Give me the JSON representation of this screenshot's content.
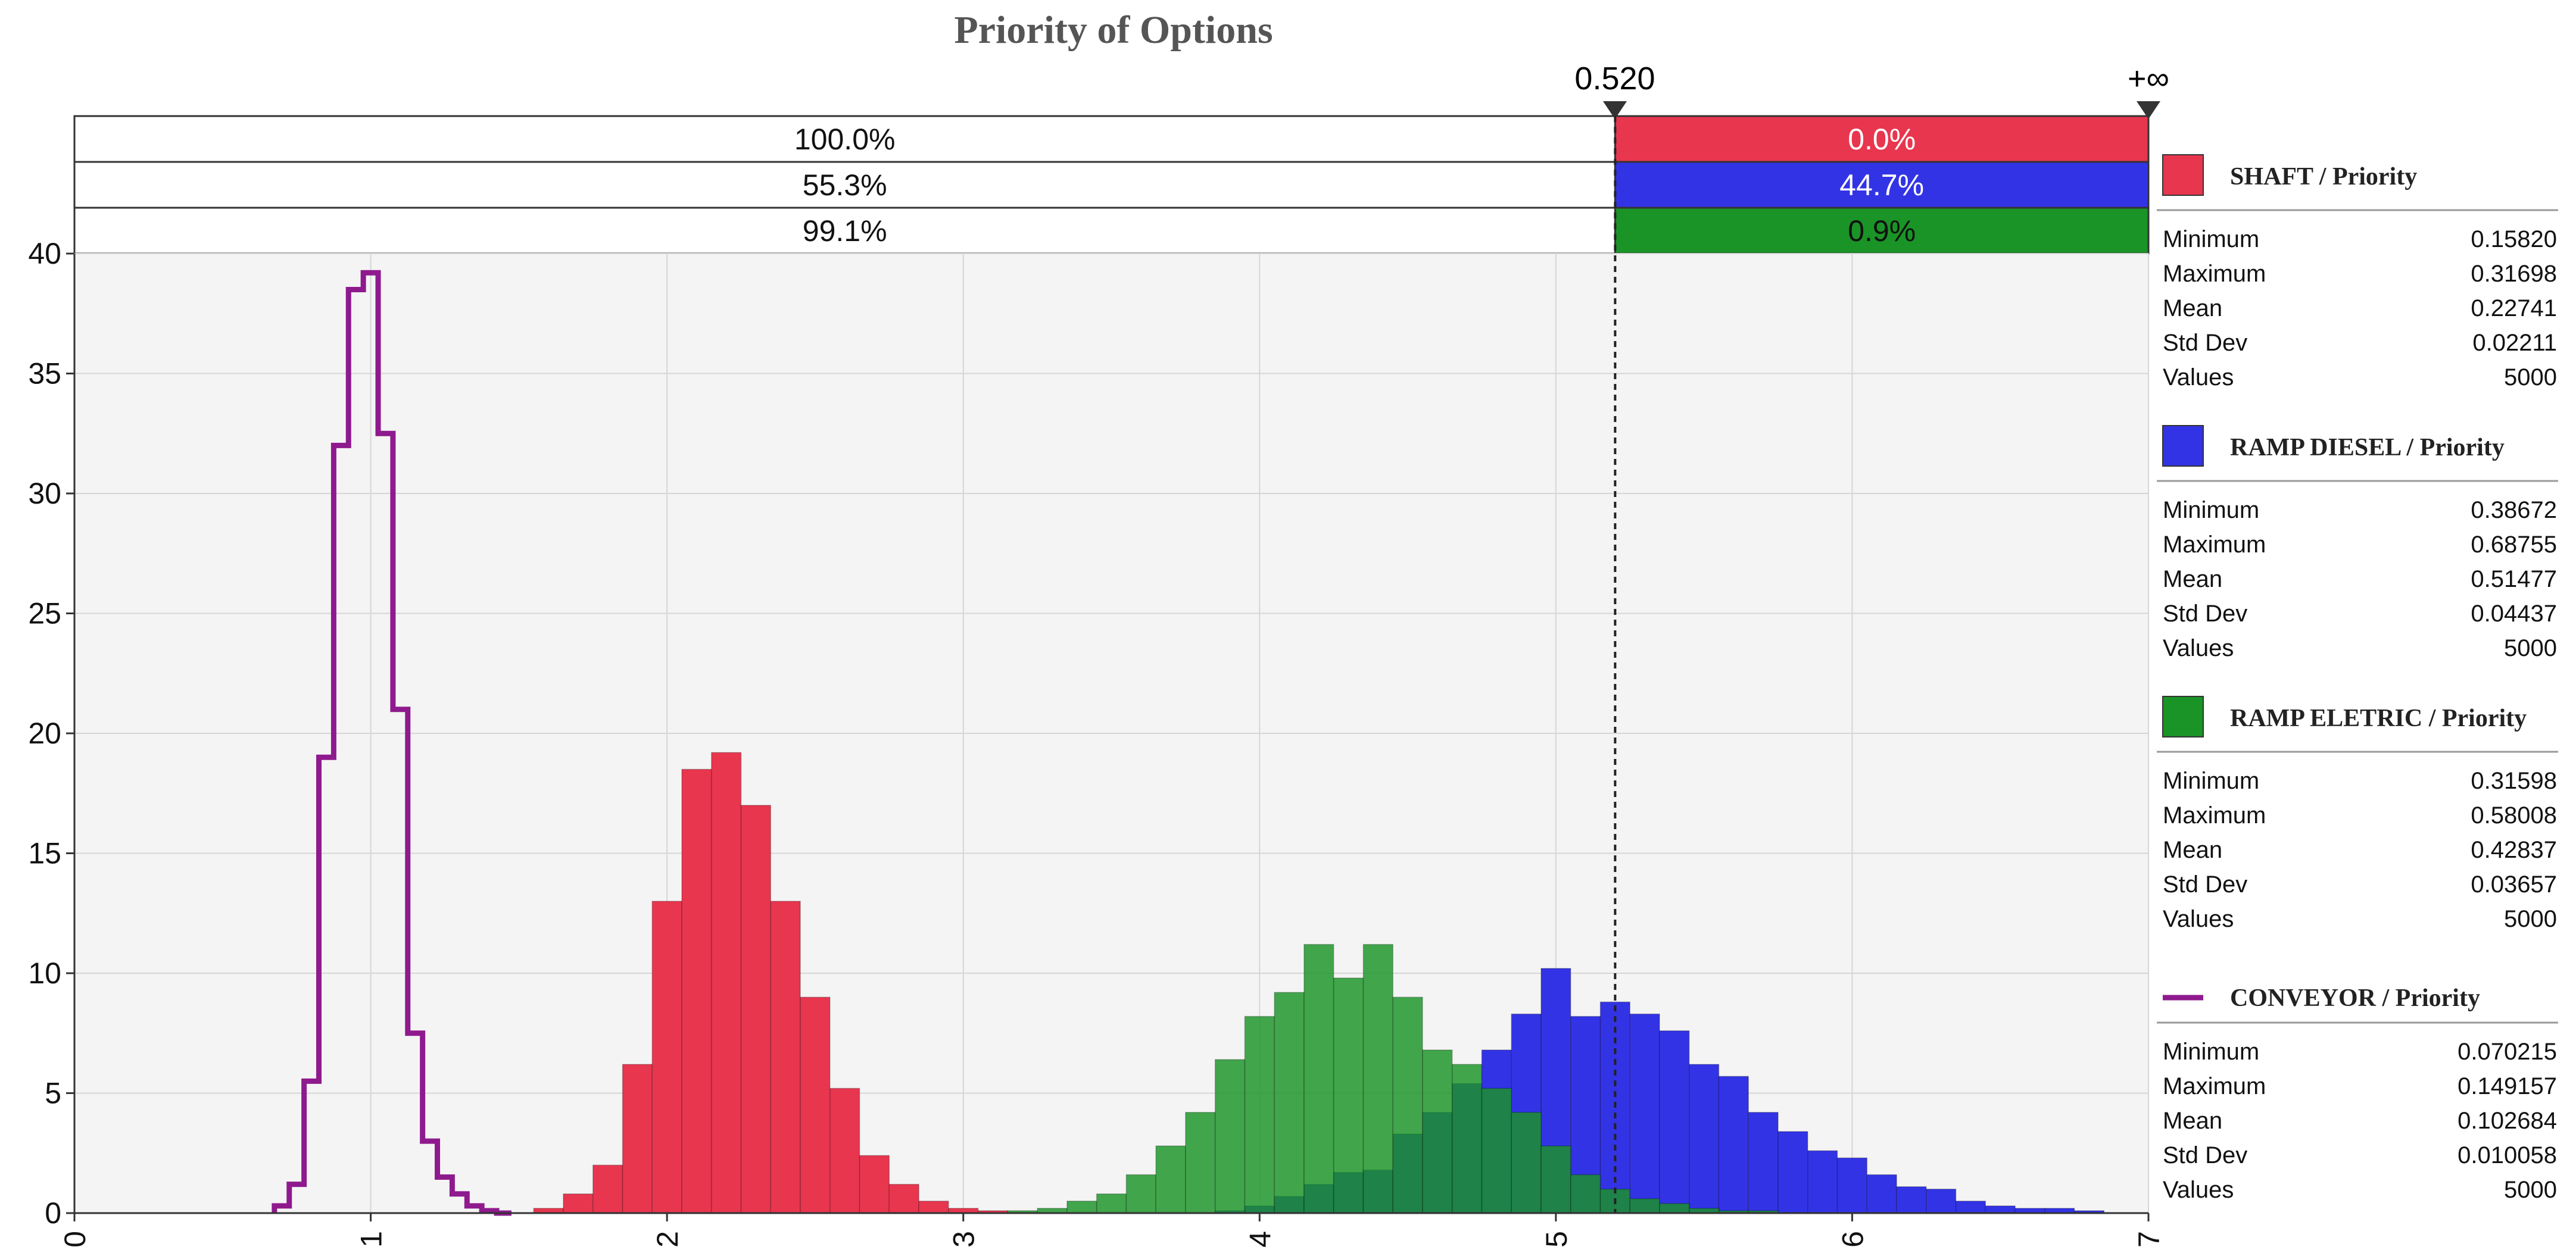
{
  "chart_data": {
    "type": "bar",
    "title": "Priority of Options",
    "xlabel": "",
    "ylabel": "",
    "xlim": [
      0.0,
      0.7
    ],
    "ylim": [
      0,
      40
    ],
    "x_ticks": [
      "0.0",
      "0.1",
      "0.2",
      "0.3",
      "0.4",
      "0.5",
      "0.6",
      "0.7"
    ],
    "y_ticks": [
      "0",
      "5",
      "10",
      "15",
      "20",
      "25",
      "30",
      "35",
      "40"
    ],
    "grid": true,
    "bin_width": 0.01,
    "marker": {
      "value": 0.52,
      "left_label": "0.520",
      "right_label": "+∞"
    },
    "probability_bands": [
      {
        "series": "SHAFT / Priority",
        "left": "100.0%",
        "right": "0.0%",
        "color": "#e8364f"
      },
      {
        "series": "RAMP DIESEL / Priority",
        "left": "55.3%",
        "right": "44.7%",
        "color": "#3333e6"
      },
      {
        "series": "RAMP ELETRIC / Priority",
        "left": "99.1%",
        "right": "0.9%",
        "color": "#1a9426"
      }
    ],
    "series": [
      {
        "name": "SHAFT / Priority",
        "kind": "histogram",
        "color": "#e8364f",
        "x": [
          0.16,
          0.17,
          0.18,
          0.19,
          0.2,
          0.21,
          0.22,
          0.23,
          0.24,
          0.25,
          0.26,
          0.27,
          0.28,
          0.29,
          0.3,
          0.31
        ],
        "values": [
          0.2,
          0.8,
          2.0,
          6.2,
          13.0,
          18.5,
          19.2,
          17.0,
          13.0,
          9.0,
          5.2,
          2.4,
          1.2,
          0.5,
          0.2,
          0.1
        ]
      },
      {
        "name": "RAMP DIESEL / Priority",
        "kind": "histogram",
        "color": "#3333e6",
        "x": [
          0.39,
          0.4,
          0.41,
          0.42,
          0.43,
          0.44,
          0.45,
          0.46,
          0.47,
          0.48,
          0.49,
          0.5,
          0.51,
          0.52,
          0.53,
          0.54,
          0.55,
          0.56,
          0.57,
          0.58,
          0.59,
          0.6,
          0.61,
          0.62,
          0.63,
          0.64,
          0.65,
          0.66,
          0.67,
          0.68
        ],
        "values": [
          0.1,
          0.3,
          0.7,
          1.2,
          1.7,
          1.8,
          3.3,
          4.2,
          5.4,
          6.8,
          8.3,
          10.2,
          8.2,
          8.8,
          8.3,
          7.6,
          6.2,
          5.7,
          4.2,
          3.4,
          2.6,
          2.3,
          1.6,
          1.1,
          1.0,
          0.5,
          0.3,
          0.2,
          0.2,
          0.1
        ]
      },
      {
        "name": "RAMP ELETRIC / Priority",
        "kind": "histogram",
        "color": "#1a9426",
        "x": [
          0.32,
          0.33,
          0.34,
          0.35,
          0.36,
          0.37,
          0.38,
          0.39,
          0.4,
          0.41,
          0.42,
          0.43,
          0.44,
          0.45,
          0.46,
          0.47,
          0.48,
          0.49,
          0.5,
          0.51,
          0.52,
          0.53,
          0.54,
          0.55,
          0.56,
          0.57
        ],
        "values": [
          0.1,
          0.2,
          0.5,
          0.8,
          1.6,
          2.8,
          4.2,
          6.4,
          8.2,
          9.2,
          11.2,
          9.8,
          11.2,
          9.0,
          6.8,
          6.2,
          5.2,
          4.2,
          2.8,
          1.6,
          1.0,
          0.6,
          0.4,
          0.2,
          0.1,
          0.1
        ]
      },
      {
        "name": "CONVEYOR / Priority",
        "kind": "step-line",
        "color": "#8e1a8e",
        "x": [
          0.07,
          0.075,
          0.08,
          0.085,
          0.09,
          0.095,
          0.1,
          0.105,
          0.11,
          0.115,
          0.12,
          0.125,
          0.13,
          0.135,
          0.14,
          0.145
        ],
        "values": [
          0.3,
          1.2,
          5.5,
          19.0,
          32.0,
          38.5,
          39.2,
          32.5,
          21.0,
          7.5,
          3.0,
          1.5,
          0.8,
          0.3,
          0.1,
          0.0
        ]
      }
    ],
    "stats_labels": [
      "Minimum",
      "Maximum",
      "Mean",
      "Std Dev",
      "Values"
    ],
    "stats": [
      {
        "name": "SHAFT / Priority",
        "values": [
          "0.15820",
          "0.31698",
          "0.22741",
          "0.02211",
          "5000"
        ]
      },
      {
        "name": "RAMP DIESEL / Priority",
        "values": [
          "0.38672",
          "0.68755",
          "0.51477",
          "0.04437",
          "5000"
        ]
      },
      {
        "name": "RAMP ELETRIC / Priority",
        "values": [
          "0.31598",
          "0.58008",
          "0.42837",
          "0.03657",
          "5000"
        ]
      },
      {
        "name": "CONVEYOR / Priority",
        "values": [
          "0.070215",
          "0.149157",
          "0.102684",
          "0.010058",
          "5000"
        ]
      }
    ]
  }
}
